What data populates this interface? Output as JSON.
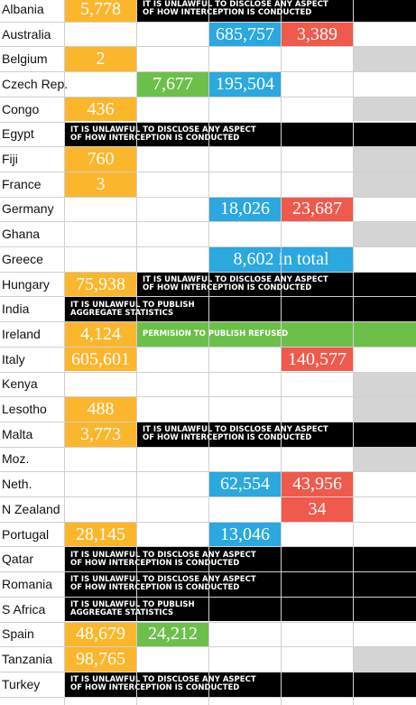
{
  "chart_data": {
    "type": "table",
    "colors": {
      "col1": "#fbb62b",
      "col2": "#6cc04a",
      "col3": "#2aa8df",
      "col4": "#ef5a4c",
      "note_black": "#000000",
      "note_green": "#6cc04a",
      "grey": "#d4d4d4"
    },
    "rows": [
      {
        "country": "Albania",
        "values": [
          "5,778",
          null,
          null,
          null
        ],
        "note": {
          "text": "IT IS UNLAWFUL TO DISCLOSE ANY ASPECT\nOF HOW INTERCEPTION IS CONDUCTED",
          "startCol": 2,
          "style": "black"
        },
        "grey": false
      },
      {
        "country": "Australia",
        "values": [
          null,
          null,
          "685,757",
          "3,389"
        ],
        "grey": false
      },
      {
        "country": "Belgium",
        "values": [
          "2",
          null,
          null,
          null
        ],
        "grey": true
      },
      {
        "country": "Czech Rep.",
        "values": [
          null,
          "7,677",
          "195,504",
          null
        ],
        "grey": false
      },
      {
        "country": "Congo",
        "values": [
          "436",
          null,
          null,
          null
        ],
        "grey": true
      },
      {
        "country": "Egypt",
        "values": [
          null,
          null,
          null,
          null
        ],
        "note": {
          "text": "IT IS UNLAWFUL TO DISCLOSE ANY ASPECT\nOF HOW INTERCEPTION IS CONDUCTED",
          "startCol": 1,
          "style": "black"
        },
        "grey": false
      },
      {
        "country": "Fiji",
        "values": [
          "760",
          null,
          null,
          null
        ],
        "grey": true
      },
      {
        "country": "France",
        "values": [
          "3",
          null,
          null,
          null
        ],
        "grey": true
      },
      {
        "country": "Germany",
        "values": [
          null,
          null,
          "18,026",
          "23,687"
        ],
        "grey": false
      },
      {
        "country": "Ghana",
        "values": [
          null,
          null,
          null,
          null
        ],
        "grey": true
      },
      {
        "country": "Greece",
        "values": [
          null,
          null,
          null,
          null
        ],
        "span": {
          "text": "8,602 in total",
          "startCol": 3,
          "endCol": 4,
          "color": "col3"
        },
        "grey": false
      },
      {
        "country": "Hungary",
        "values": [
          "75,938",
          null,
          null,
          null
        ],
        "note": {
          "text": "IT IS UNLAWFUL TO DISCLOSE ANY ASPECT\nOF HOW INTERCEPTION IS CONDUCTED",
          "startCol": 2,
          "style": "black"
        },
        "grey": false
      },
      {
        "country": "India",
        "values": [
          null,
          null,
          null,
          null
        ],
        "note": {
          "text": "IT IS UNLAWFUL TO PUBLISH\nAGGREGATE STATISTICS",
          "startCol": 1,
          "style": "black"
        },
        "grey": false
      },
      {
        "country": "Ireland",
        "values": [
          "4,124",
          null,
          null,
          null
        ],
        "note": {
          "text": "PERMISION TO PUBLISH REFUSED",
          "startCol": 2,
          "style": "green"
        },
        "grey": false
      },
      {
        "country": "Italy",
        "values": [
          "605,601",
          null,
          null,
          "140,577"
        ],
        "grey": false
      },
      {
        "country": "Kenya",
        "values": [
          null,
          null,
          null,
          null
        ],
        "grey": true
      },
      {
        "country": "Lesotho",
        "values": [
          "488",
          null,
          null,
          null
        ],
        "grey": true
      },
      {
        "country": "Malta",
        "values": [
          "3,773",
          null,
          null,
          null
        ],
        "note": {
          "text": "IT IS UNLAWFUL TO DISCLOSE ANY ASPECT\nOF HOW INTERCEPTION IS CONDUCTED",
          "startCol": 2,
          "style": "black"
        },
        "grey": false
      },
      {
        "country": "Moz.",
        "values": [
          null,
          null,
          null,
          null
        ],
        "grey": true
      },
      {
        "country": "Neth.",
        "values": [
          null,
          null,
          "62,554",
          "43,956"
        ],
        "grey": false
      },
      {
        "country": "N Zealand",
        "values": [
          null,
          null,
          null,
          "34"
        ],
        "grey": false
      },
      {
        "country": "Portugal",
        "values": [
          "28,145",
          null,
          "13,046",
          null
        ],
        "grey": false
      },
      {
        "country": "Qatar",
        "values": [
          null,
          null,
          null,
          null
        ],
        "note": {
          "text": "IT IS UNLAWFUL TO DISCLOSE ANY ASPECT\nOF HOW INTERCEPTION IS CONDUCTED",
          "startCol": 1,
          "style": "black"
        },
        "grey": false
      },
      {
        "country": "Romania",
        "values": [
          null,
          null,
          null,
          null
        ],
        "note": {
          "text": "IT IS UNLAWFUL TO DISCLOSE ANY ASPECT\nOF HOW INTERCEPTION IS CONDUCTED",
          "startCol": 1,
          "style": "black"
        },
        "grey": false
      },
      {
        "country": "S Africa",
        "values": [
          null,
          null,
          null,
          null
        ],
        "note": {
          "text": "IT IS UNLAWFUL TO PUBLISH\nAGGREGATE STATISTICS",
          "startCol": 1,
          "style": "black"
        },
        "grey": false
      },
      {
        "country": "Spain",
        "values": [
          "48,679",
          "24,212",
          null,
          null
        ],
        "grey": false
      },
      {
        "country": "Tanzania",
        "values": [
          "98,765",
          null,
          null,
          null
        ],
        "grey": true
      },
      {
        "country": "Turkey",
        "values": [
          null,
          null,
          null,
          null
        ],
        "note": {
          "text": "IT IS UNLAWFUL TO DISCLOSE ANY ASPECT\nOF HOW INTERCEPTION IS CONDUCTED",
          "startCol": 1,
          "style": "black"
        },
        "grey": false
      }
    ]
  }
}
